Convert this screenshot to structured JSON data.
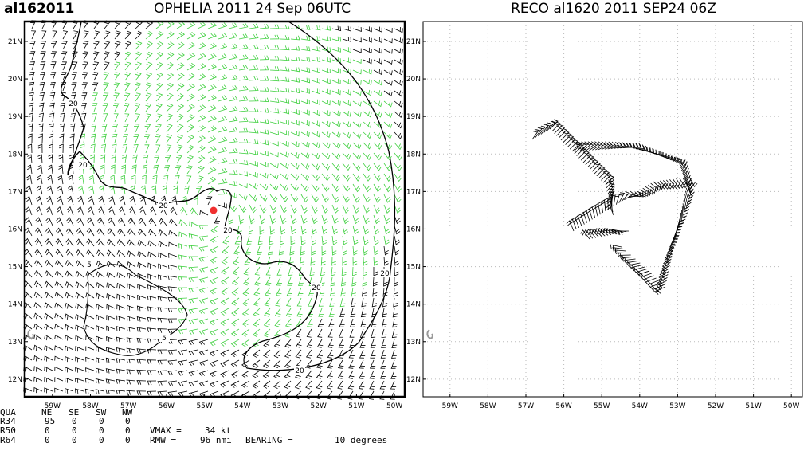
{
  "panels": [
    {
      "label": "al162011",
      "title": "OPHELIA 2011 24 Sep 06UTC",
      "xlim": [
        -59.73,
        -49.73
      ],
      "ylim": [
        11.53,
        21.53
      ],
      "xticks": [
        {
          "value": -59,
          "label": "59W"
        },
        {
          "value": -58,
          "label": "58W"
        },
        {
          "value": -57,
          "label": "57W"
        },
        {
          "value": -56,
          "label": "56W"
        },
        {
          "value": -55,
          "label": "55W"
        },
        {
          "value": -54,
          "label": "54W"
        },
        {
          "value": -53,
          "label": "53W"
        },
        {
          "value": -52,
          "label": "52W"
        },
        {
          "value": -51,
          "label": "51W"
        },
        {
          "value": -50,
          "label": "50W"
        }
      ],
      "yticks": [
        {
          "value": 12,
          "label": "12N"
        },
        {
          "value": 13,
          "label": "13N"
        },
        {
          "value": 14,
          "label": "14N"
        },
        {
          "value": 15,
          "label": "15N"
        },
        {
          "value": 16,
          "label": "16N"
        },
        {
          "value": 17,
          "label": "17N"
        },
        {
          "value": 18,
          "label": "18N"
        },
        {
          "value": 19,
          "label": "19N"
        },
        {
          "value": 20,
          "label": "20N"
        },
        {
          "value": 21,
          "label": "21N"
        }
      ],
      "contour_labels": [
        "20",
        "20",
        "20",
        "20",
        "20",
        "20",
        "20",
        "5",
        "5"
      ]
    },
    {
      "title": "RECO al1620 2011 SEP24 06Z",
      "xlim": [
        -59.71,
        -49.71
      ],
      "ylim": [
        11.53,
        21.53
      ],
      "xticks": [
        {
          "value": -59,
          "label": "59W"
        },
        {
          "value": -58,
          "label": "58W"
        },
        {
          "value": -57,
          "label": "57W"
        },
        {
          "value": -56,
          "label": "56W"
        },
        {
          "value": -55,
          "label": "55W"
        },
        {
          "value": -54,
          "label": "54W"
        },
        {
          "value": -53,
          "label": "53W"
        },
        {
          "value": -52,
          "label": "52W"
        },
        {
          "value": -51,
          "label": "51W"
        },
        {
          "value": -50,
          "label": "50W"
        }
      ],
      "yticks": [
        {
          "value": 12,
          "label": "12N"
        },
        {
          "value": 13,
          "label": "13N"
        },
        {
          "value": 14,
          "label": "14N"
        },
        {
          "value": 15,
          "label": "15N"
        },
        {
          "value": 16,
          "label": "16N"
        },
        {
          "value": 17,
          "label": "17N"
        },
        {
          "value": 18,
          "label": "18N"
        },
        {
          "value": 19,
          "label": "19N"
        },
        {
          "value": 20,
          "label": "20N"
        },
        {
          "value": 21,
          "label": "21N"
        }
      ]
    }
  ],
  "table": {
    "header": [
      "QUA",
      "NE",
      "SE",
      "SW",
      "NW"
    ],
    "rows": [
      [
        "R34",
        "95",
        "0",
        "0",
        "0"
      ],
      [
        "R50",
        "0",
        "0",
        "0",
        "0"
      ],
      [
        "R64",
        "0",
        "0",
        "0",
        "0"
      ]
    ]
  },
  "info": {
    "vmax_label": "VMAX =",
    "vmax": "34 kt",
    "rmw_label": "RMW =",
    "rmw": "96 nmi",
    "bearing_label": "BEARING =",
    "bearing": "10 degrees"
  }
}
